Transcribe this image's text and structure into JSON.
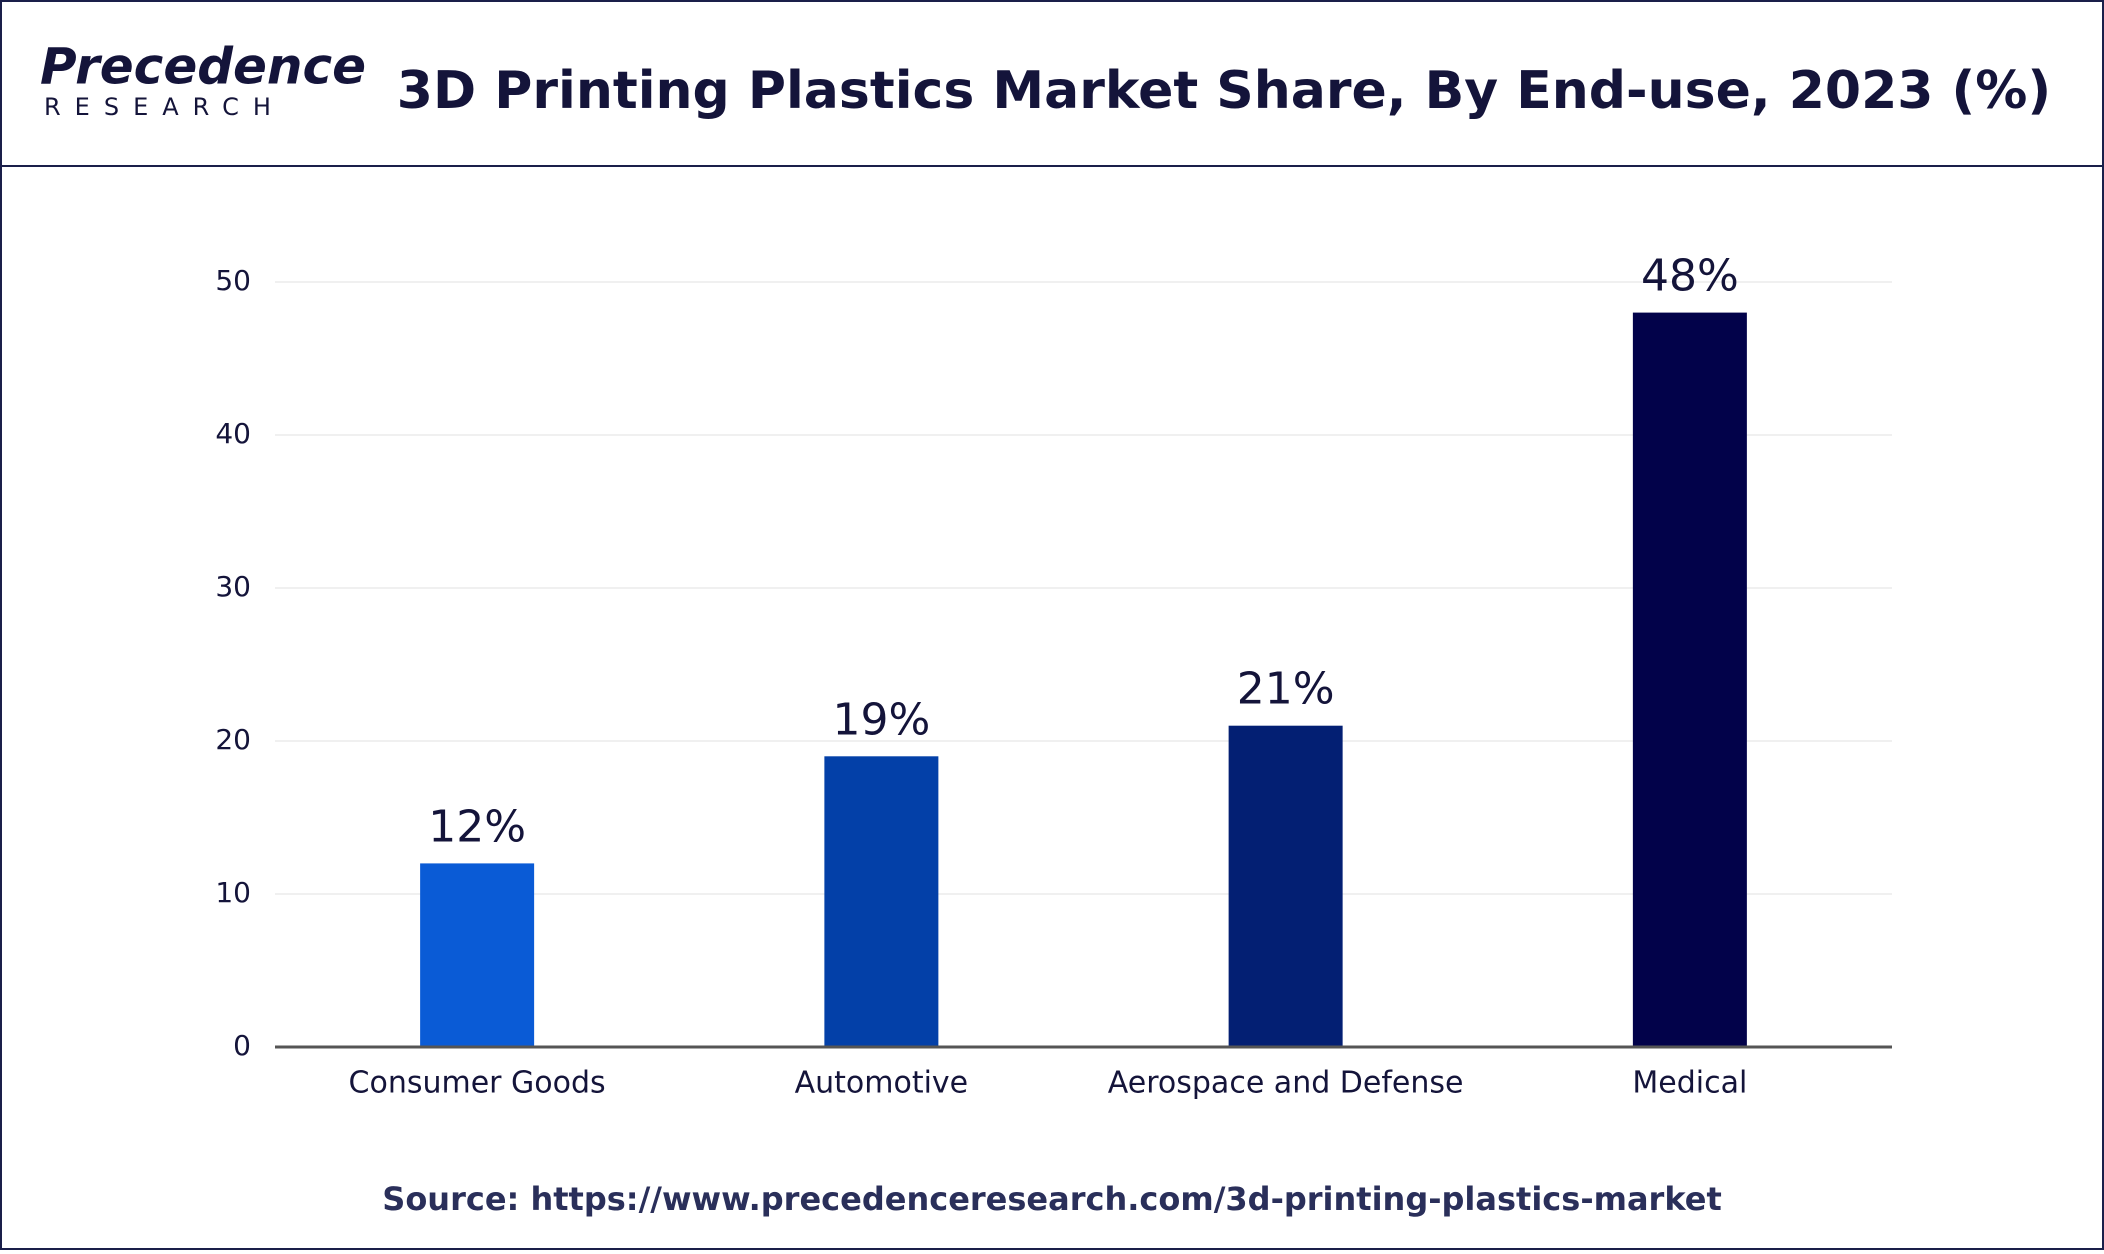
{
  "logo": {
    "name": "Precedence",
    "sub": "RESEARCH"
  },
  "chart_data": {
    "type": "bar",
    "title": "3D Printing Plastics Market Share, By End-use, 2023 (%)",
    "categories": [
      "Consumer Goods",
      "Automotive",
      "Aerospace and Defense",
      "Medical"
    ],
    "values": [
      12,
      19,
      21,
      48
    ],
    "value_labels": [
      "12%",
      "19%",
      "21%",
      "48%"
    ],
    "colors": [
      "#0a5bd6",
      "#0340a8",
      "#031f73",
      "#02024a"
    ],
    "ylim": [
      0,
      50
    ],
    "yticks": [
      0,
      10,
      20,
      30,
      40,
      50
    ],
    "grid": true,
    "source": "Source: https://www.precedenceresearch.com/3d-printing-plastics-market"
  }
}
